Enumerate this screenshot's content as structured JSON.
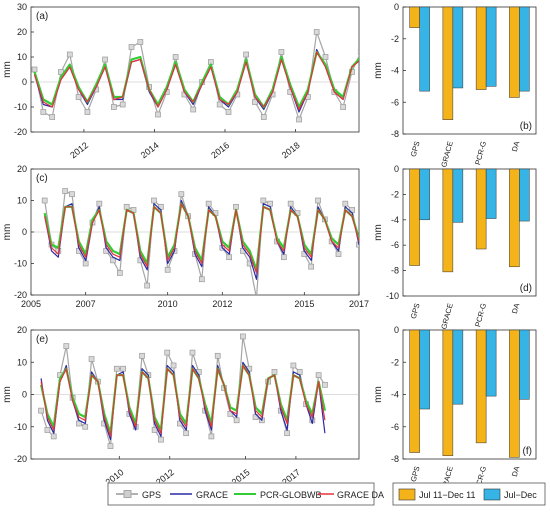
{
  "chart_data": [
    {
      "id": "a",
      "type": "line",
      "panel_label": "(a)",
      "ylabel": "mm",
      "ylim": [
        -20,
        30
      ],
      "yticks": [
        -20,
        -10,
        0,
        10,
        20,
        30
      ],
      "xlim": [
        2010.5,
        2019.8
      ],
      "xticks": [
        2012,
        2014,
        2016,
        2018
      ],
      "x_start": 2010.6,
      "x_step": 0.25,
      "series": [
        {
          "name": "GPS",
          "color": "#a6a6a6",
          "marker": "square",
          "values": [
            5,
            -12,
            -14,
            4,
            11,
            -6,
            -12,
            -3,
            9,
            -10,
            -9,
            14,
            16,
            -2,
            -13,
            -4,
            10,
            -5,
            -11,
            0,
            8,
            -9,
            -12,
            -5,
            11,
            -8,
            -14,
            -5,
            12,
            -4,
            -15,
            -6,
            20,
            10,
            -4,
            -10,
            4,
            12,
            -2,
            -8,
            -3,
            6,
            -3,
            -10,
            -3,
            9,
            -6,
            -14,
            -8,
            5,
            -9,
            -14,
            -6
          ]
        },
        {
          "name": "GRACE",
          "color": "#2a2aa6",
          "values": [
            3,
            -9,
            -10,
            1,
            6,
            -3,
            -9,
            -2,
            6,
            -7,
            -7,
            8,
            9,
            -4,
            -10,
            -3,
            7,
            -4,
            -9,
            -1,
            6,
            -7,
            -10,
            -4,
            8,
            -6,
            -11,
            -4,
            9,
            -2,
            -12,
            -4,
            13,
            6,
            -4,
            -7,
            6,
            9,
            -2,
            -7,
            -2,
            6,
            -3,
            -8,
            -2,
            7,
            -4,
            -11,
            -5,
            4,
            -7,
            -11,
            -5
          ]
        },
        {
          "name": "PCR-GLOBWB",
          "color": "#33cc33",
          "values": [
            4,
            -7,
            -9,
            2,
            7,
            -2,
            -8,
            -1,
            7,
            -6,
            -6,
            9,
            10,
            -3,
            -9,
            -2,
            8,
            -3,
            -8,
            0,
            7,
            -6,
            -9,
            -3,
            9,
            -5,
            -10,
            -3,
            10,
            -1,
            -10,
            -3,
            12,
            7,
            -3,
            -6,
            6,
            10,
            -1,
            -6,
            -1,
            7,
            -2,
            -7,
            -1,
            8,
            -3,
            -10,
            -4,
            5,
            -6,
            -10,
            -4
          ]
        },
        {
          "name": "GRACE DA",
          "color": "#e8323c",
          "values": [
            3,
            -8,
            -10,
            1,
            6,
            -3,
            -8,
            -2,
            6,
            -7,
            -6,
            8,
            9,
            -3,
            -10,
            -3,
            7,
            -4,
            -8,
            -1,
            6,
            -7,
            -9,
            -4,
            8,
            -6,
            -10,
            -4,
            9,
            -2,
            -11,
            -4,
            12,
            6,
            -4,
            -7,
            6,
            9,
            -2,
            -7,
            -2,
            6,
            -3,
            -8,
            -2,
            7,
            -4,
            -10,
            -5,
            4,
            -7,
            -10,
            -5
          ]
        }
      ]
    },
    {
      "id": "c",
      "type": "line",
      "panel_label": "(c)",
      "ylabel": "mm",
      "ylim": [
        -20,
        20
      ],
      "yticks": [
        -20,
        -10,
        0,
        10,
        20
      ],
      "xlim": [
        2005,
        2017
      ],
      "xticks": [
        2005,
        2007,
        2010,
        2012,
        2015,
        2017
      ],
      "x_start": 2005.5,
      "x_step": 0.25,
      "series": [
        {
          "name": "GPS",
          "color": "#a6a6a6",
          "marker": "square",
          "values": [
            10,
            -4,
            -6,
            13,
            12,
            -6,
            -10,
            3,
            9,
            -6,
            -9,
            -13,
            8,
            7,
            -9,
            -17,
            10,
            8,
            -12,
            -6,
            12,
            5,
            -7,
            -15,
            9,
            6,
            -5,
            -8,
            8,
            -6,
            -10,
            -21,
            10,
            9,
            -3,
            -8,
            9,
            6,
            -7,
            -11,
            10,
            4,
            -3,
            -7,
            9,
            7,
            -4,
            -8,
            8,
            5,
            -5,
            -8,
            11,
            6,
            -6,
            -9,
            6
          ]
        },
        {
          "name": "GRACE",
          "color": "#2a2aa6",
          "values": [
            5,
            -6,
            -8,
            8,
            9,
            -5,
            -9,
            3,
            8,
            -5,
            -8,
            -9,
            7,
            6,
            -8,
            -12,
            9,
            7,
            -10,
            -6,
            10,
            5,
            -7,
            -11,
            8,
            5,
            -5,
            -7,
            7,
            -5,
            -8,
            -15,
            9,
            8,
            -3,
            -7,
            8,
            5,
            -6,
            -9,
            8,
            4,
            -3,
            -6,
            8,
            6,
            -4,
            -7,
            7,
            4,
            -4,
            -6,
            9,
            5,
            -5,
            -7,
            5
          ]
        },
        {
          "name": "PCR-GLOBWB",
          "color": "#33cc33",
          "values": [
            6,
            -4,
            -5,
            8,
            8,
            -3,
            -7,
            4,
            7,
            -3,
            -6,
            -7,
            7,
            6,
            -6,
            -10,
            8,
            6,
            -8,
            -4,
            9,
            5,
            -5,
            -9,
            7,
            5,
            -3,
            -5,
            7,
            -3,
            -6,
            -12,
            8,
            7,
            -2,
            -5,
            7,
            5,
            -4,
            -7,
            7,
            4,
            -2,
            -4,
            7,
            5,
            -2,
            -5,
            6,
            4,
            -3,
            -4,
            8,
            5,
            -3,
            -5,
            5
          ]
        },
        {
          "name": "GRACE DA",
          "color": "#e8323c",
          "values": [
            5,
            -5,
            -7,
            8,
            8,
            -4,
            -8,
            3,
            7,
            -4,
            -7,
            -8,
            7,
            6,
            -7,
            -11,
            8,
            6,
            -9,
            -5,
            9,
            5,
            -6,
            -10,
            7,
            5,
            -4,
            -6,
            7,
            -4,
            -7,
            -13,
            8,
            7,
            -3,
            -6,
            7,
            5,
            -5,
            -8,
            7,
            4,
            -3,
            -5,
            7,
            5,
            -3,
            -6,
            6,
            4,
            -4,
            -5,
            8,
            5,
            -4,
            -6,
            5
          ]
        }
      ]
    },
    {
      "id": "e",
      "type": "line",
      "panel_label": "(e)",
      "ylabel": "mm",
      "ylim": [
        -20,
        20
      ],
      "yticks": [
        -20,
        -10,
        0,
        10,
        20
      ],
      "xlim": [
        2006.5,
        2019.5
      ],
      "xticks": [
        2010,
        2012,
        2015,
        2017
      ],
      "x_start": 2006.9,
      "x_step": 0.25,
      "series": [
        {
          "name": "GPS",
          "color": "#a6a6a6",
          "marker": "square",
          "values": [
            -5,
            -11,
            -13,
            6,
            15,
            -1,
            -9,
            -10,
            11,
            4,
            -9,
            -16,
            8,
            8,
            -6,
            -10,
            12,
            6,
            -11,
            -14,
            13,
            9,
            -9,
            -12,
            13,
            7,
            -5,
            -13,
            12,
            2,
            -6,
            -8,
            18,
            8,
            -7,
            -8,
            4,
            7,
            -5,
            -12,
            9,
            7,
            -3,
            -8,
            6,
            3
          ]
        },
        {
          "name": "GRACE",
          "color": "#2a2aa6",
          "values": [
            5,
            -8,
            -12,
            4,
            9,
            -2,
            -8,
            -9,
            7,
            4,
            -8,
            -14,
            6,
            7,
            -6,
            -11,
            8,
            6,
            -9,
            -13,
            9,
            7,
            -8,
            -11,
            9,
            6,
            -5,
            -11,
            9,
            3,
            -5,
            -7,
            10,
            7,
            -6,
            -8,
            5,
            6,
            -5,
            -11,
            7,
            6,
            -3,
            -9,
            4,
            -12
          ]
        },
        {
          "name": "PCR-GLOBWB",
          "color": "#33cc33",
          "values": [
            3,
            -6,
            -10,
            5,
            8,
            -1,
            -6,
            -7,
            6,
            4,
            -6,
            -12,
            6,
            6,
            -4,
            -9,
            7,
            5,
            -7,
            -11,
            8,
            6,
            -6,
            -9,
            8,
            5,
            -3,
            -9,
            8,
            3,
            -4,
            -5,
            9,
            6,
            -4,
            -6,
            5,
            6,
            -3,
            -8,
            6,
            5,
            -2,
            -6,
            4,
            -5
          ]
        },
        {
          "name": "GRACE DA",
          "color": "#e8323c",
          "values": [
            4,
            -7,
            -11,
            4,
            8,
            -2,
            -7,
            -8,
            6,
            4,
            -7,
            -13,
            6,
            6,
            -5,
            -10,
            7,
            5,
            -8,
            -12,
            8,
            6,
            -7,
            -10,
            8,
            5,
            -4,
            -10,
            8,
            3,
            -5,
            -6,
            9,
            6,
            -5,
            -7,
            5,
            6,
            -4,
            -9,
            6,
            5,
            -3,
            -7,
            4,
            -8
          ]
        }
      ]
    },
    {
      "id": "b",
      "type": "bar",
      "panel_label": "(b)",
      "ylabel": "mm",
      "ylim": [
        -8,
        0
      ],
      "yticks": [
        -8,
        -6,
        -4,
        -2,
        0
      ],
      "categories": [
        "GPS",
        "GRACE",
        "PCR-G",
        "DA"
      ],
      "series": [
        {
          "name": "Jul 11−Dec 11",
          "color": "#f5b31a",
          "values": [
            -1.3,
            -7.1,
            -5.2,
            -5.7
          ]
        },
        {
          "name": "Jul−Dec",
          "color": "#36b4e6",
          "values": [
            -5.3,
            -5.1,
            -5.0,
            -5.3
          ]
        }
      ]
    },
    {
      "id": "d",
      "type": "bar",
      "panel_label": "(d)",
      "ylabel": "mm",
      "ylim": [
        -10,
        0
      ],
      "yticks": [
        -10,
        -8,
        -6,
        -4,
        -2,
        0
      ],
      "categories": [
        "GPS",
        "GRACE",
        "PCR-G",
        "DA"
      ],
      "series": [
        {
          "name": "Jul 11−Dec 11",
          "color": "#f5b31a",
          "values": [
            -7.6,
            -8.1,
            -6.3,
            -7.7
          ]
        },
        {
          "name": "Jul−Dec",
          "color": "#36b4e6",
          "values": [
            -4.0,
            -4.2,
            -3.9,
            -4.1
          ]
        }
      ]
    },
    {
      "id": "f",
      "type": "bar",
      "panel_label": "(f)",
      "ylabel": "mm",
      "ylim": [
        -8,
        0
      ],
      "yticks": [
        -8,
        -6,
        -4,
        -2,
        0
      ],
      "categories": [
        "GPS",
        "GRACE",
        "PCR-G",
        "DA"
      ],
      "series": [
        {
          "name": "Jul 11−Dec 11",
          "color": "#f5b31a",
          "values": [
            -7.6,
            -7.8,
            -7.0,
            -7.9
          ]
        },
        {
          "name": "Jul−Dec",
          "color": "#36b4e6",
          "values": [
            -4.9,
            -4.6,
            -4.1,
            -4.3
          ]
        }
      ]
    }
  ],
  "legend_lines": [
    "GPS",
    "GRACE",
    "PCR-GLOBWB",
    "GRACE DA"
  ],
  "legend_bars": [
    "Jul 11−Dec 11",
    "Jul−Dec"
  ]
}
